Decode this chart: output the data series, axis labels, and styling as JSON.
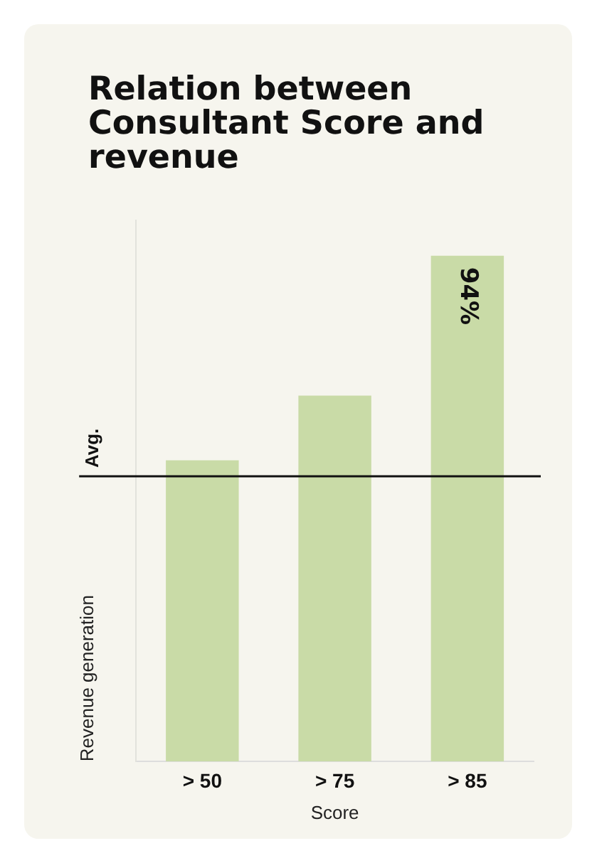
{
  "chart_data": {
    "type": "bar",
    "title": "Relation between Consultant Score and revenue",
    "xlabel": "Score",
    "ylabel": "Revenue generation",
    "categories": [
      "> 50",
      "> 75",
      "> 85"
    ],
    "values": [
      56,
      68,
      94
    ],
    "value_labels": [
      null,
      null,
      "94%"
    ],
    "color": "#c9dba7",
    "tick_labels": "x",
    "grid": false,
    "legend": false,
    "ref_lines": [
      {
        "axis": "y",
        "value": 53,
        "label": "Avg.",
        "color": "#111111"
      }
    ]
  }
}
